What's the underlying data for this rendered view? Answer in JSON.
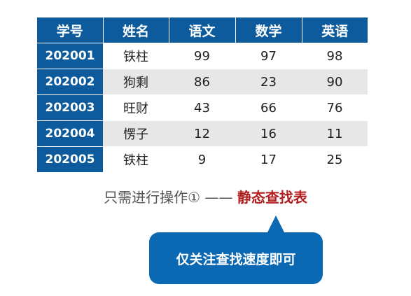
{
  "table": {
    "headers": [
      "学号",
      "姓名",
      "语文",
      "数学",
      "英语"
    ],
    "rows": [
      {
        "id": "202001",
        "name": "铁柱",
        "chinese": "99",
        "math": "97",
        "english": "98"
      },
      {
        "id": "202002",
        "name": "狗剩",
        "chinese": "86",
        "math": "23",
        "english": "90"
      },
      {
        "id": "202003",
        "name": "旺财",
        "chinese": "43",
        "math": "66",
        "english": "76"
      },
      {
        "id": "202004",
        "name": "愣子",
        "chinese": "12",
        "math": "16",
        "english": "11"
      },
      {
        "id": "202005",
        "name": "铁柱",
        "chinese": "9",
        "math": "17",
        "english": "25"
      }
    ]
  },
  "caption": {
    "prefix": "只需进行操作① —— ",
    "highlight": "静态查找表"
  },
  "callout": {
    "text": "仅关注查找速度即可"
  },
  "colors": {
    "header_blue": "#0d5b9c",
    "alt_row_gray": "#e7e7e7",
    "highlight_red": "#b11e1e",
    "callout_blue": "#0b69b4"
  }
}
